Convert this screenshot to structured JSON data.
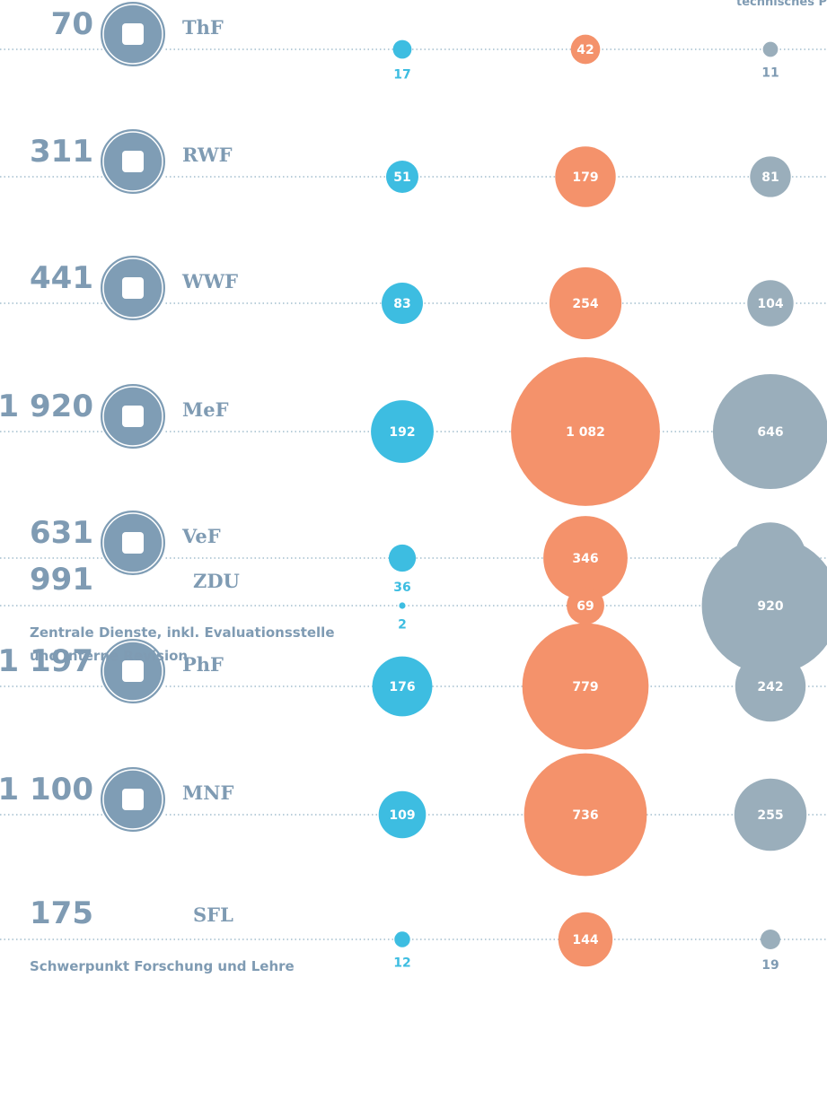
{
  "chart_data": {
    "type": "bubble",
    "header": "technisches P",
    "colors": [
      "#3dbde1",
      "#f4926b",
      "#9aaebb"
    ],
    "rows": [
      {
        "total": 70,
        "code": "ThF",
        "values": [
          17,
          42,
          11
        ]
      },
      {
        "total": 311,
        "code": "RWF",
        "values": [
          51,
          179,
          81
        ]
      },
      {
        "total": 441,
        "code": "WWF",
        "values": [
          83,
          254,
          104
        ]
      },
      {
        "total": 1920,
        "total_label": "1 920",
        "code": "MeF",
        "values": [
          192,
          1082,
          646
        ],
        "value_labels": [
          "192",
          "1 082",
          "646"
        ]
      },
      {
        "total": 631,
        "code": "VeF",
        "values": [
          36,
          346,
          249
        ]
      },
      {
        "total": 1197,
        "total_label": "1 197",
        "code": "PhF",
        "values": [
          176,
          779,
          242
        ]
      },
      {
        "total": 1100,
        "total_label": "1 100",
        "code": "MNF",
        "values": [
          109,
          736,
          255
        ]
      },
      {
        "total": 991,
        "code": "ZDU",
        "description": [
          "Zentrale Dienste, inkl. Evaluationsstelle",
          "und Interne Revision"
        ],
        "values": [
          2,
          69,
          920
        ]
      },
      {
        "total": 175,
        "code": "SFL",
        "description": [
          "Schwerpunkt Forschung und Lehre"
        ],
        "values": [
          12,
          144,
          19
        ]
      }
    ]
  }
}
